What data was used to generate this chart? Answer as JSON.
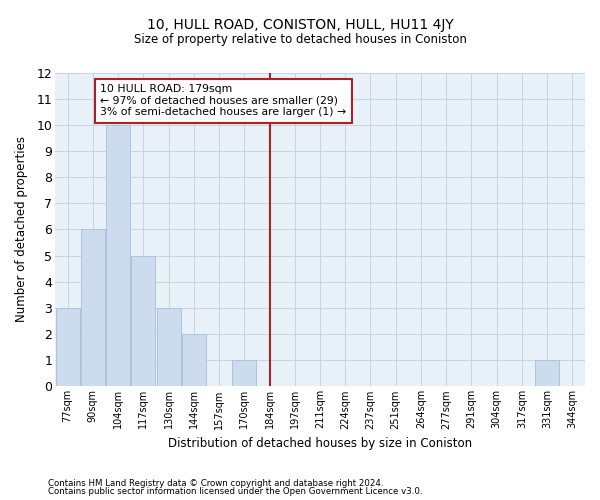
{
  "title": "10, HULL ROAD, CONISTON, HULL, HU11 4JY",
  "subtitle": "Size of property relative to detached houses in Coniston",
  "xlabel": "Distribution of detached houses by size in Coniston",
  "ylabel": "Number of detached properties",
  "categories": [
    "77sqm",
    "90sqm",
    "104sqm",
    "117sqm",
    "130sqm",
    "144sqm",
    "157sqm",
    "170sqm",
    "184sqm",
    "197sqm",
    "211sqm",
    "224sqm",
    "237sqm",
    "251sqm",
    "264sqm",
    "277sqm",
    "291sqm",
    "304sqm",
    "317sqm",
    "331sqm",
    "344sqm"
  ],
  "values": [
    3,
    6,
    10,
    5,
    3,
    2,
    0,
    1,
    0,
    0,
    0,
    0,
    0,
    0,
    0,
    0,
    0,
    0,
    0,
    1,
    0
  ],
  "bar_color": "#ccdcee",
  "bar_edgecolor": "#aac4de",
  "highlight_index": 8,
  "highlight_color": "#aa2222",
  "ylim": [
    0,
    12
  ],
  "yticks": [
    0,
    1,
    2,
    3,
    4,
    5,
    6,
    7,
    8,
    9,
    10,
    11,
    12
  ],
  "annotation_line1": "10 HULL ROAD: 179sqm",
  "annotation_line2": "← 97% of detached houses are smaller (29)",
  "annotation_line3": "3% of semi-detached houses are larger (1) →",
  "annotation_box_color": "#aa2222",
  "grid_color": "#c8d4e4",
  "background_color": "#e8f0f8",
  "footer1": "Contains HM Land Registry data © Crown copyright and database right 2024.",
  "footer2": "Contains public sector information licensed under the Open Government Licence v3.0."
}
